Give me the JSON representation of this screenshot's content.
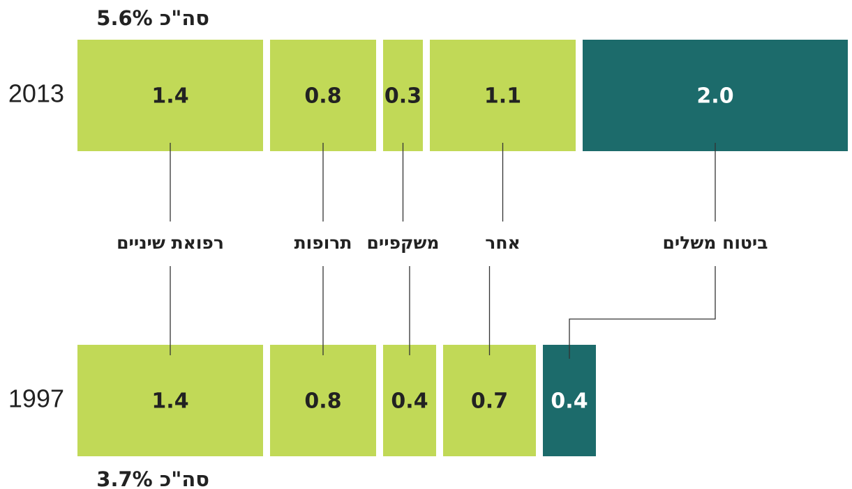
{
  "chart_data": {
    "type": "bar",
    "orientation": "horizontal",
    "stacked": true,
    "categories": [
      "2013",
      "1997"
    ],
    "total_labels": [
      "סה\"כ 5.6%",
      "סה\"כ 3.7%"
    ],
    "series": [
      {
        "name": "רפואת שיניים",
        "color": "#c1d957",
        "values": [
          1.4,
          1.4
        ],
        "value_labels": [
          "1.4",
          "1.4"
        ]
      },
      {
        "name": "תרופות",
        "color": "#c1d957",
        "values": [
          0.8,
          0.8
        ],
        "value_labels": [
          "0.8",
          "0.8"
        ]
      },
      {
        "name": "משקפיים",
        "color": "#c1d957",
        "values": [
          0.3,
          0.4
        ],
        "value_labels": [
          "0.3",
          "0.4"
        ]
      },
      {
        "name": "אחר",
        "color": "#c1d957",
        "values": [
          1.1,
          0.7
        ],
        "value_labels": [
          "1.1",
          "0.7"
        ]
      },
      {
        "name": "ביטוח משלים",
        "color": "#1c6b6b",
        "values": [
          2.0,
          0.4
        ],
        "value_labels": [
          "2.0",
          "0.4"
        ]
      }
    ]
  }
}
